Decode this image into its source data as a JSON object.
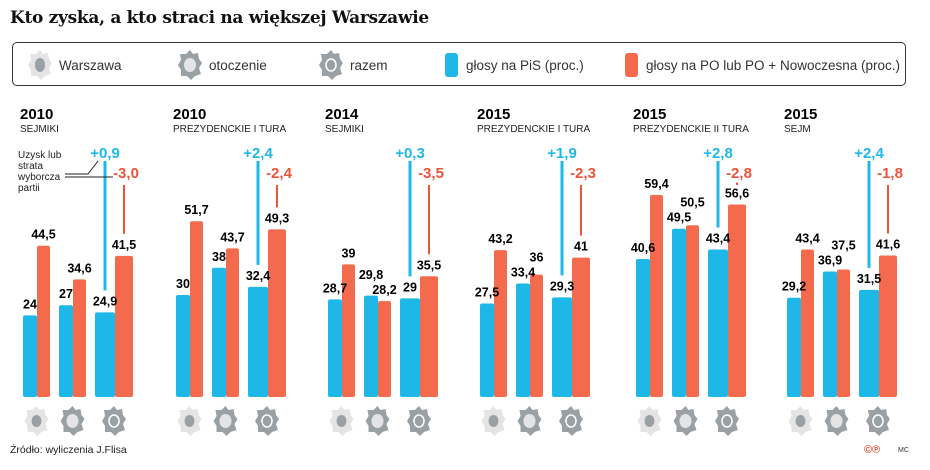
{
  "title": "Kto zyska, a kto straci na większej Warszawie",
  "legend": [
    {
      "label": "Warszawa",
      "icon": "warszawa-map-icon"
    },
    {
      "label": "otoczenie",
      "icon": "otoczenie-map-icon"
    },
    {
      "label": "razem",
      "icon": "razem-map-icon"
    },
    {
      "label": "głosy na PiS (proc.)",
      "color": "#1eb8e8"
    },
    {
      "label": "głosy na PO lub PO + Nowoczesna (proc.)",
      "color": "#f36b4c"
    }
  ],
  "annotation": "Uzysk lub strata wyborcza partii",
  "source": "Źródło: wyliczenia J.Flisa",
  "copyright": "©℗",
  "author": "MC",
  "chart_data": {
    "type": "bar",
    "categories": [
      "Warszawa",
      "otoczenie",
      "razem"
    ],
    "colors": {
      "pis": "#1eb8e8",
      "po": "#f36b4c"
    },
    "panels": [
      {
        "year": "2010",
        "election": "SEJMIKI",
        "pis": [
          24,
          27,
          24.9
        ],
        "po": [
          44.5,
          34.6,
          41.5
        ],
        "pis_change": "+0,9",
        "po_change": "-3,0"
      },
      {
        "year": "2010",
        "election": "PREZYDENCKIE I TURA",
        "pis": [
          30,
          38,
          32.4
        ],
        "po": [
          51.7,
          43.7,
          49.3
        ],
        "pis_change": "+2,4",
        "po_change": "-2,4"
      },
      {
        "year": "2014",
        "election": "SEJMIKI",
        "pis": [
          28.7,
          29.8,
          29
        ],
        "po": [
          39,
          28.2,
          35.5
        ],
        "pis_change": "+0,3",
        "po_change": "-3,5"
      },
      {
        "year": "2015",
        "election": "PREZYDENCKIE I TURA",
        "pis": [
          27.5,
          33.4,
          29.3
        ],
        "po": [
          43.2,
          36,
          41
        ],
        "pis_change": "+1,9",
        "po_change": "-2,3"
      },
      {
        "year": "2015",
        "election": "PREZYDENCKIE II TURA",
        "pis": [
          40.6,
          49.5,
          43.4
        ],
        "po": [
          59.4,
          50.5,
          56.6
        ],
        "pis_change": "+2,8",
        "po_change": "-2,8"
      },
      {
        "year": "2015",
        "election": "SEJM",
        "pis": [
          29.2,
          36.9,
          31.5
        ],
        "po": [
          43.4,
          37.5,
          41.6
        ],
        "pis_change": "+2,4",
        "po_change": "-1,8"
      }
    ]
  }
}
